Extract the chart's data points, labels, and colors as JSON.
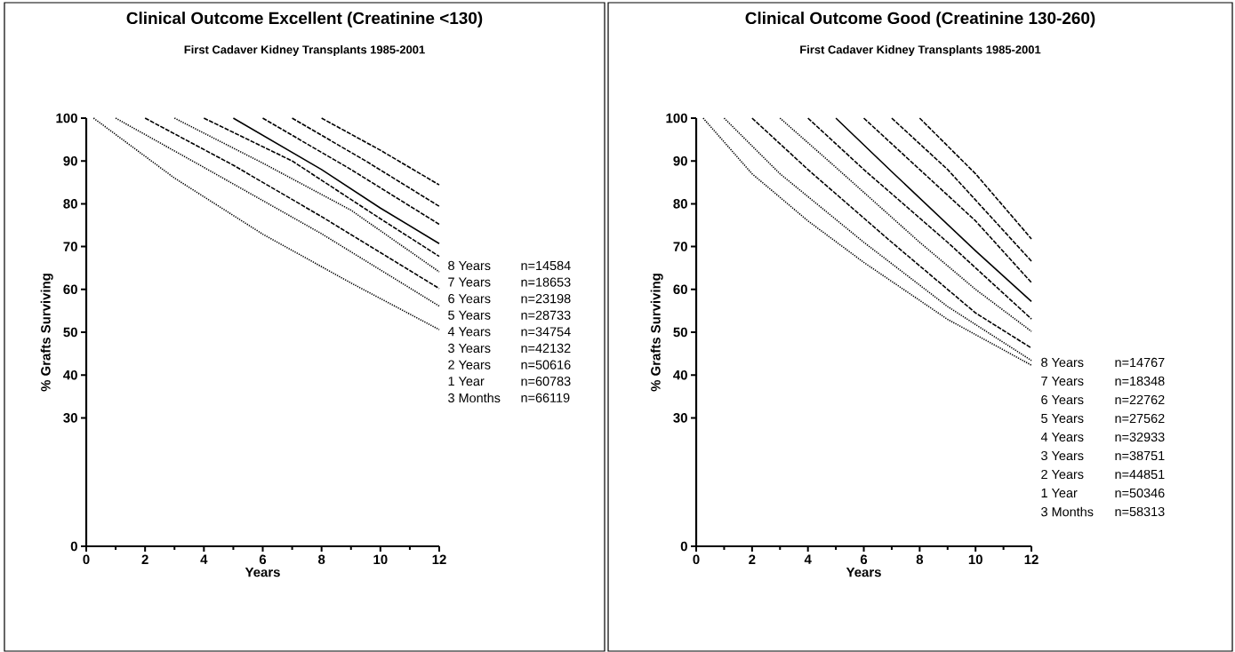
{
  "chart_data": [
    {
      "type": "line",
      "title": "Clinical Outcome Excellent (Creatinine <130)",
      "subtitle": "First Cadaver Kidney Transplants 1985-2001",
      "xlabel": "Years",
      "ylabel": "% Grafts Surviving",
      "xlim": [
        0,
        12
      ],
      "ylim": [
        0,
        100
      ],
      "xticks": [
        0,
        2,
        4,
        6,
        8,
        10,
        12
      ],
      "yticks": [
        0,
        30,
        40,
        50,
        60,
        70,
        80,
        90,
        100
      ],
      "marker": "none",
      "series": [
        {
          "name": "8 Years",
          "color": "#000000",
          "line_style": "dashed",
          "x": [
            8,
            10,
            12
          ],
          "values": [
            100,
            92.5,
            84.4
          ]
        },
        {
          "name": "7 Years",
          "color": "#000000",
          "line_style": "dashed",
          "x": [
            7,
            9.5,
            12
          ],
          "values": [
            100,
            90,
            79.4
          ]
        },
        {
          "name": "6 Years",
          "color": "#000000",
          "line_style": "dashed",
          "x": [
            6,
            9,
            12
          ],
          "values": [
            100,
            88,
            75.2
          ]
        },
        {
          "name": "5 Years",
          "color": "#000000",
          "line_style": "solid",
          "x": [
            5,
            8,
            10,
            12
          ],
          "values": [
            100,
            88,
            79,
            70.7
          ]
        },
        {
          "name": "4 Years",
          "color": "#000000",
          "line_style": "dashed",
          "x": [
            4,
            7,
            10,
            12
          ],
          "values": [
            100,
            90,
            76.5,
            67.7
          ]
        },
        {
          "name": "3 Years",
          "color": "#000000",
          "line_style": "dotted",
          "x": [
            3,
            6,
            9,
            12
          ],
          "values": [
            100,
            89.5,
            78.5,
            64.1
          ]
        },
        {
          "name": "2 Years",
          "color": "#000000",
          "line_style": "dashed",
          "x": [
            2,
            5,
            8,
            12
          ],
          "values": [
            100,
            89,
            77,
            60.2
          ]
        },
        {
          "name": "1 Year",
          "color": "#000000",
          "line_style": "dotted",
          "x": [
            1,
            4,
            8,
            12
          ],
          "values": [
            100,
            88.5,
            73,
            56.1
          ]
        },
        {
          "name": "3 Months",
          "color": "#000000",
          "line_style": "dotted",
          "x": [
            0.25,
            3,
            6,
            9,
            12
          ],
          "values": [
            100,
            86,
            72.9,
            61.5,
            50.6
          ]
        }
      ],
      "annotations": [
        "n=14584",
        "n=18653",
        "n=23198",
        "n=28733",
        "n=34754",
        "n=42132",
        "n=50616",
        "n=60783",
        "n=66119"
      ]
    },
    {
      "type": "line",
      "title": "Clinical Outcome Good (Creatinine 130-260)",
      "subtitle": "First Cadaver Kidney Transplants 1985-2001",
      "xlabel": "Years",
      "ylabel": "% Grafts Surviving",
      "xlim": [
        0,
        12
      ],
      "ylim": [
        0,
        100
      ],
      "xticks": [
        0,
        2,
        4,
        6,
        8,
        10,
        12
      ],
      "yticks": [
        0,
        30,
        40,
        50,
        60,
        70,
        80,
        90,
        100
      ],
      "marker": "none",
      "series": [
        {
          "name": "8 Years",
          "color": "#000000",
          "line_style": "dashed",
          "x": [
            8,
            10,
            12
          ],
          "values": [
            100,
            87,
            71.8
          ]
        },
        {
          "name": "7 Years",
          "color": "#000000",
          "line_style": "dashed",
          "x": [
            7,
            9,
            12
          ],
          "values": [
            100,
            88,
            66.6
          ]
        },
        {
          "name": "6 Years",
          "color": "#000000",
          "line_style": "dashed",
          "x": [
            6,
            8,
            10,
            12
          ],
          "values": [
            100,
            88,
            76,
            61.6
          ]
        },
        {
          "name": "5 Years",
          "color": "#000000",
          "line_style": "solid",
          "x": [
            5,
            7,
            10,
            12
          ],
          "values": [
            100,
            87.5,
            69,
            57.2
          ]
        },
        {
          "name": "4 Years",
          "color": "#000000",
          "line_style": "dashed",
          "x": [
            4,
            6,
            9,
            12
          ],
          "values": [
            100,
            88,
            71,
            53.1
          ]
        },
        {
          "name": "3 Years",
          "color": "#000000",
          "line_style": "dotted",
          "x": [
            3,
            5,
            8,
            10,
            12
          ],
          "values": [
            100,
            88.5,
            71,
            60,
            50.2
          ]
        },
        {
          "name": "2 Years",
          "color": "#000000",
          "line_style": "dashed",
          "x": [
            2,
            4,
            7,
            10,
            12
          ],
          "values": [
            100,
            88,
            71,
            54.5,
            46.3
          ]
        },
        {
          "name": "1 Year",
          "color": "#000000",
          "line_style": "dotted",
          "x": [
            1,
            3,
            6,
            9,
            12
          ],
          "values": [
            100,
            87,
            71,
            56,
            43.4
          ]
        },
        {
          "name": "3 Months",
          "color": "#000000",
          "line_style": "dotted",
          "x": [
            0.25,
            2,
            4,
            6,
            9,
            12
          ],
          "values": [
            100,
            87,
            76,
            66.3,
            53,
            42.3
          ]
        }
      ],
      "annotations": [
        "n=14767",
        "n=18348",
        "n=22762",
        "n=27562",
        "n=32933",
        "n=38751",
        "n=44851",
        "n=50346",
        "n=58313"
      ]
    }
  ]
}
